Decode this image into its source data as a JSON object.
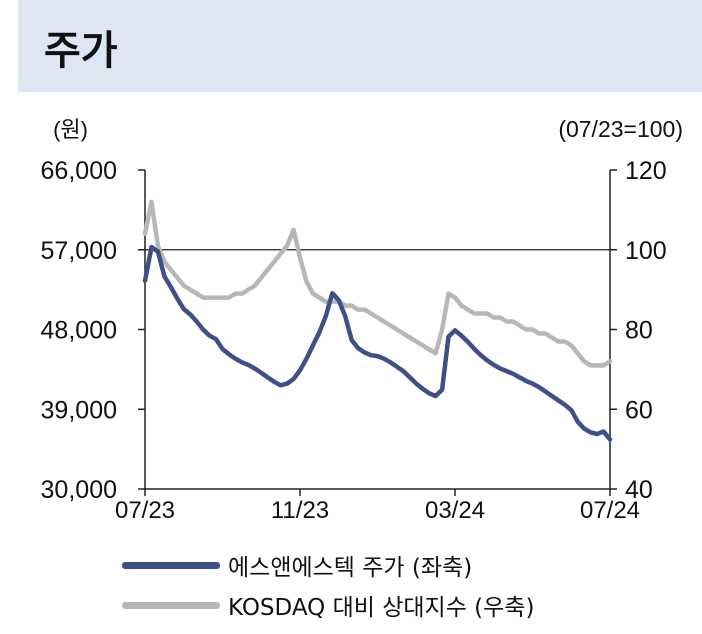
{
  "title": "주가",
  "chart_data": {
    "type": "line",
    "y_left_unit": "(원)",
    "y_right_unit": "(07/23=100)",
    "y_left_ticks": [
      "66,000",
      "57,000",
      "48,000",
      "39,000",
      "30,000"
    ],
    "y_right_ticks": [
      "120",
      "100",
      "80",
      "60",
      "40"
    ],
    "x_ticks": [
      "07/23",
      "11/23",
      "03/24",
      "07/24"
    ],
    "ylim_left": [
      30000,
      66000
    ],
    "ylim_right": [
      40,
      120
    ],
    "reference_line_right": 100,
    "grid": false,
    "legend_position": "bottom",
    "series": [
      {
        "name": "에스앤에스텍 주가 (좌축)",
        "axis": "left",
        "color": "#3f4f87",
        "values": [
          53500,
          57300,
          56800,
          54000,
          52800,
          51500,
          50300,
          49700,
          48900,
          48000,
          47300,
          46900,
          45800,
          45200,
          44700,
          44300,
          44000,
          43600,
          43100,
          42600,
          42100,
          41700,
          41900,
          42400,
          43400,
          44700,
          46200,
          47700,
          49500,
          52100,
          51300,
          49500,
          46800,
          45900,
          45400,
          45100,
          45000,
          44700,
          44300,
          43800,
          43300,
          42600,
          41900,
          41300,
          40800,
          40500,
          41200,
          47200,
          47900,
          47300,
          46600,
          45800,
          45100,
          44500,
          44000,
          43600,
          43300,
          43000,
          42600,
          42200,
          41900,
          41500,
          41000,
          40500,
          40000,
          39500,
          38900,
          37600,
          36800,
          36400,
          36200,
          36500,
          35600
        ]
      },
      {
        "name": "KOSDAQ 대비 상대지수 (우축)",
        "axis": "right",
        "color": "#b7b7b7",
        "values": [
          104,
          112,
          101,
          97,
          95,
          93,
          91,
          90,
          89,
          88,
          88,
          88,
          88,
          88,
          89,
          89,
          90,
          91,
          93,
          95,
          97,
          99,
          101,
          105,
          98,
          92,
          89,
          88,
          87,
          87,
          87,
          86,
          86,
          85,
          85,
          84,
          83,
          82,
          81,
          80,
          79,
          78,
          77,
          76,
          75,
          74,
          80,
          89,
          88,
          86,
          85,
          84,
          84,
          84,
          83,
          83,
          82,
          82,
          81,
          80,
          80,
          79,
          79,
          78,
          77,
          77,
          76,
          74,
          72,
          71,
          71,
          71,
          72
        ]
      }
    ]
  }
}
